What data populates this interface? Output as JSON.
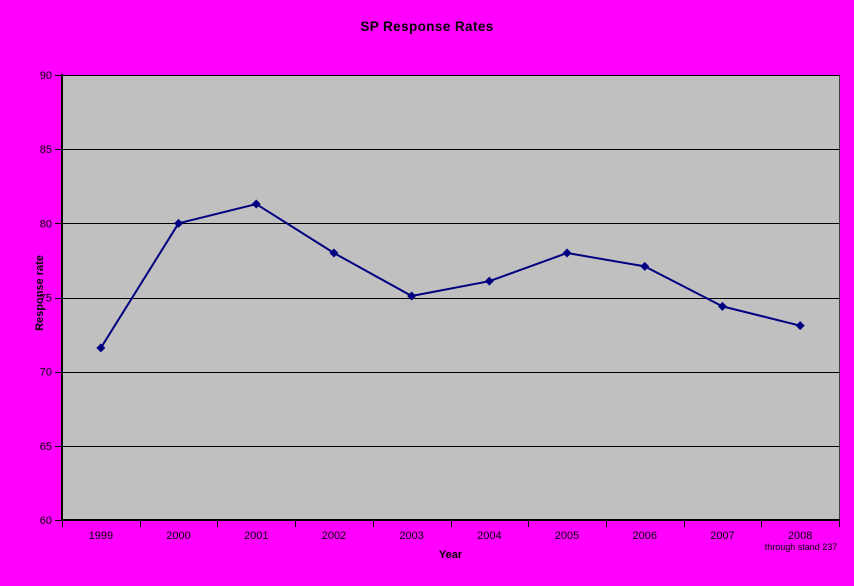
{
  "window": {
    "background_color": "#FF00FF"
  },
  "chart_data": {
    "type": "line",
    "title": "SP Response Rates",
    "xlabel": "Year",
    "ylabel": "Response rate",
    "annotation": "through stand 237",
    "annotation_position": "below-2008-x-label",
    "categories": [
      "1999",
      "2000",
      "2001",
      "2002",
      "2003",
      "2004",
      "2005",
      "2006",
      "2007",
      "2008"
    ],
    "values": [
      71.6,
      80,
      81.3,
      78,
      75.1,
      76.1,
      78,
      77.1,
      74.4,
      73.1
    ],
    "series_name": "SP Response Rate",
    "ylim": [
      60,
      90
    ],
    "yticks": [
      60,
      65,
      70,
      75,
      80,
      85,
      90
    ],
    "grid": "horizontal-major",
    "legend": "none",
    "marker": "diamond",
    "colors": {
      "background": "#FF00FF",
      "plot_background": "#C0C0C0",
      "line": "#000080",
      "marker": "#000080",
      "gridline": "#000000",
      "axis": "#000000",
      "plot_right_border": "#404040",
      "text": "#000000"
    }
  }
}
